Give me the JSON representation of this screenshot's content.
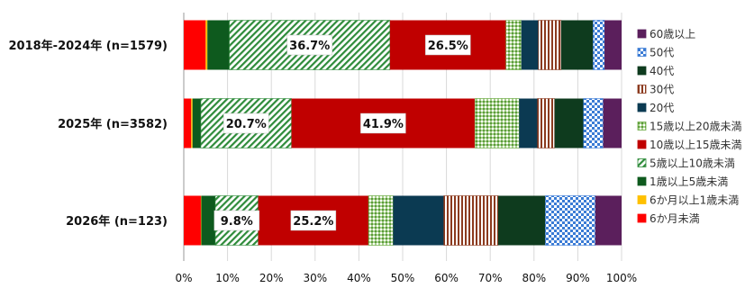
{
  "chart_data": {
    "type": "bar",
    "orientation": "horizontal",
    "stacked": true,
    "normalized": true,
    "categories": [
      "2018年-2024年 (n=1579)",
      "2025年 (n=3582)",
      "2026年 (n=123)"
    ],
    "xlim": [
      0,
      100
    ],
    "xticks": [
      "0%",
      "10%",
      "20%",
      "30%",
      "40%",
      "50%",
      "60%",
      "70%",
      "80%",
      "90%",
      "100%"
    ],
    "grid": true,
    "legend_position": "right",
    "series": [
      {
        "name": "6か月未満",
        "values": [
          5.0,
          1.7,
          3.9
        ],
        "color": "#ff0000",
        "pattern": "solid"
      },
      {
        "name": "6か月以上1歳未満",
        "values": [
          0.4,
          0.3,
          0.1
        ],
        "color": "#ffc000",
        "pattern": "solid"
      },
      {
        "name": "1歳以上5歳未満",
        "values": [
          5.0,
          1.9,
          3.2
        ],
        "color": "#0e5a1e",
        "pattern": "solid"
      },
      {
        "name": "5歳以上10歳未満",
        "values": [
          36.7,
          20.7,
          9.8
        ],
        "color": "#2e8b3a",
        "pattern": "diag"
      },
      {
        "name": "10歳以上15歳未満",
        "values": [
          26.5,
          41.9,
          25.2
        ],
        "color": "#c00000",
        "pattern": "solid"
      },
      {
        "name": "15歳以上20歳未満",
        "values": [
          3.5,
          10.1,
          5.6
        ],
        "color": "#70ad47",
        "pattern": "dots"
      },
      {
        "name": "20代",
        "values": [
          3.9,
          4.2,
          11.6
        ],
        "color": "#0b3a52",
        "pattern": "solid"
      },
      {
        "name": "30代",
        "values": [
          5.2,
          3.9,
          12.4
        ],
        "color": "#8b3a1e",
        "pattern": "vstripe"
      },
      {
        "name": "40代",
        "values": [
          7.3,
          6.6,
          10.8
        ],
        "color": "#0e3b1e",
        "pattern": "solid"
      },
      {
        "name": "50代",
        "values": [
          2.6,
          4.5,
          11.4
        ],
        "color": "#3a7bd5",
        "pattern": "checker"
      },
      {
        "name": "60歳以上",
        "values": [
          3.9,
          4.2,
          6.0
        ],
        "color": "#5b1f5c",
        "pattern": "solid"
      }
    ],
    "data_labels": [
      {
        "series": "5歳以上10歳未満",
        "labels": [
          "36.7%",
          "20.7%",
          "9.8%"
        ]
      },
      {
        "series": "10歳以上15歳未満",
        "labels": [
          "26.5%",
          "41.9%",
          "25.2%"
        ]
      }
    ]
  }
}
